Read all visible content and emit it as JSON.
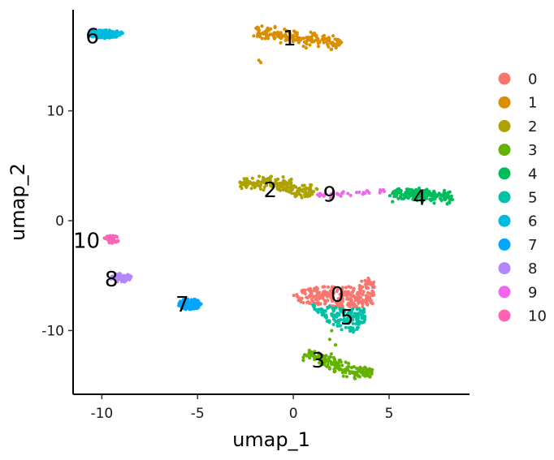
{
  "chart_data": {
    "type": "scatter",
    "xlabel": "umap_1",
    "ylabel": "umap_2",
    "xlim": [
      -11.5,
      9.2
    ],
    "ylim": [
      -15.8,
      19.2
    ],
    "xticks": [
      -10,
      -5,
      0,
      5
    ],
    "xtick_labels": [
      "-10",
      "-5",
      "0",
      "5"
    ],
    "yticks": [
      -10,
      0,
      10
    ],
    "ytick_labels": [
      "-10",
      "0",
      "10"
    ],
    "grid": false,
    "legend_position": "right",
    "series": [
      {
        "name": "0",
        "color": "#F8766D",
        "center": [
          2.8,
          -7.2
        ],
        "label_pos": [
          2.3,
          -6.7
        ],
        "shape": "polygon",
        "poly": [
          [
            0.0,
            -6.8
          ],
          [
            0.6,
            -6.2
          ],
          [
            1.8,
            -5.9
          ],
          [
            3.3,
            -6.0
          ],
          [
            3.8,
            -5.0
          ],
          [
            4.2,
            -5.5
          ],
          [
            4.3,
            -7.6
          ],
          [
            3.6,
            -7.9
          ],
          [
            1.8,
            -7.8
          ],
          [
            0.3,
            -7.4
          ]
        ],
        "count": 260
      },
      {
        "name": "1",
        "color": "#DB8E00",
        "center": [
          -0.5,
          16.8
        ],
        "label_pos": [
          -0.2,
          16.6
        ],
        "shape": "band",
        "path": [
          [
            -2.0,
            17.3
          ],
          [
            -1.0,
            16.9
          ],
          [
            0.5,
            16.7
          ],
          [
            1.5,
            16.4
          ],
          [
            2.5,
            16.0
          ]
        ],
        "width": 0.6,
        "count": 170,
        "outliers": [
          [
            -1.8,
            14.6
          ],
          [
            -1.7,
            14.4
          ]
        ]
      },
      {
        "name": "2",
        "color": "#AEA200",
        "center": [
          -0.8,
          3.0
        ],
        "label_pos": [
          -1.2,
          2.8
        ],
        "shape": "band",
        "path": [
          [
            -2.8,
            3.4
          ],
          [
            -1.5,
            3.5
          ],
          [
            -0.5,
            3.2
          ],
          [
            0.5,
            2.7
          ],
          [
            1.0,
            2.4
          ]
        ],
        "width": 0.6,
        "count": 190
      },
      {
        "name": "3",
        "color": "#64B200",
        "center": [
          2.0,
          -12.8
        ],
        "label_pos": [
          1.3,
          -12.7
        ],
        "shape": "band",
        "path": [
          [
            0.6,
            -12.1
          ],
          [
            1.6,
            -12.6
          ],
          [
            2.6,
            -13.4
          ],
          [
            3.6,
            -13.9
          ],
          [
            4.1,
            -14.0
          ]
        ],
        "width": 0.6,
        "count": 170,
        "outliers": [
          [
            1.9,
            -10.8
          ],
          [
            2.0,
            -10.0
          ],
          [
            2.2,
            -11.3
          ]
        ]
      },
      {
        "name": "4",
        "color": "#00BD5C",
        "center": [
          7.0,
          2.2
        ],
        "label_pos": [
          6.6,
          2.1
        ],
        "shape": "band",
        "path": [
          [
            5.2,
            2.5
          ],
          [
            6.3,
            2.4
          ],
          [
            7.3,
            2.2
          ],
          [
            8.3,
            2.2
          ]
        ],
        "width": 0.6,
        "count": 170
      },
      {
        "name": "5",
        "color": "#00C1A7",
        "center": [
          3.0,
          -8.7
        ],
        "label_pos": [
          2.8,
          -8.8
        ],
        "shape": "polygon",
        "poly": [
          [
            0.8,
            -7.6
          ],
          [
            2.2,
            -7.9
          ],
          [
            3.7,
            -7.9
          ],
          [
            3.8,
            -9.0
          ],
          [
            3.2,
            -10.2
          ],
          [
            2.2,
            -9.8
          ],
          [
            1.4,
            -8.6
          ]
        ],
        "count": 150
      },
      {
        "name": "6",
        "color": "#00BADE",
        "center": [
          -9.8,
          17.0
        ],
        "label_pos": [
          -10.5,
          16.8
        ],
        "shape": "ellipse",
        "rx": 0.9,
        "ry": 0.4,
        "count": 130
      },
      {
        "name": "7",
        "color": "#00A6FF",
        "center": [
          -5.4,
          -7.6
        ],
        "label_pos": [
          -5.8,
          -7.6
        ],
        "shape": "ellipse",
        "rx": 0.6,
        "ry": 0.5,
        "count": 100
      },
      {
        "name": "8",
        "color": "#B385FF",
        "center": [
          -9.0,
          -5.2
        ],
        "label_pos": [
          -9.5,
          -5.3
        ],
        "shape": "ellipse",
        "rx": 0.55,
        "ry": 0.4,
        "count": 70
      },
      {
        "name": "9",
        "color": "#EF67EB",
        "center": [
          3.0,
          2.4
        ],
        "label_pos": [
          1.9,
          2.4
        ],
        "shape": "band",
        "path": [
          [
            1.3,
            2.3
          ],
          [
            2.5,
            2.4
          ],
          [
            3.8,
            2.6
          ],
          [
            4.8,
            2.7
          ]
        ],
        "width": 0.25,
        "count": 36
      },
      {
        "name": "10",
        "color": "#FF63B6",
        "center": [
          -9.5,
          -1.7
        ],
        "label_pos": [
          -10.8,
          -1.8
        ],
        "shape": "ellipse",
        "rx": 0.4,
        "ry": 0.35,
        "count": 40
      }
    ]
  }
}
